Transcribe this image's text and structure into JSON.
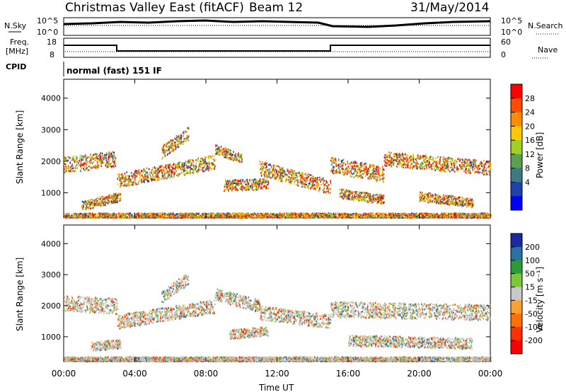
{
  "header": {
    "title": "Christmas Valley East (fitACF)",
    "beam": "Beam 12",
    "date": "31/May/2014"
  },
  "status_panels": {
    "nsky_label": "N.Sky",
    "nsearch_label": "N.Search",
    "noise_ticks_left": [
      "10^5",
      "10^0"
    ],
    "noise_ticks_right": [
      "10^5",
      "10^0"
    ],
    "freq_label_line1": "Freq.",
    "freq_label_line2": "[MHz]",
    "freq_ticks": [
      "18",
      "8"
    ],
    "nave_label": "Nave",
    "nave_ticks": [
      "60",
      "0"
    ],
    "cpid_label": "CPID",
    "cpid_value": "normal (fast) 151 IF"
  },
  "chart_data": [
    {
      "type": "heatmap",
      "title": "",
      "ylabel": "Slant Range [km]",
      "xlabel": "",
      "yticks": [
        "1000",
        "2000",
        "3000",
        "4000"
      ],
      "ylim": [
        200,
        4600
      ],
      "xlim_hours": [
        0,
        24
      ],
      "colorbar_label": "Power [dB]",
      "colorbar_ticks": [
        "28",
        "24",
        "20",
        "16",
        "12",
        "8",
        "4"
      ],
      "colorbar_colors": [
        "#ff0000",
        "#ff4a00",
        "#ff8c00",
        "#ffc800",
        "#a0d020",
        "#5aa050",
        "#3a7a80",
        "#2040b0",
        "#0000ff"
      ]
    },
    {
      "type": "heatmap",
      "title": "",
      "ylabel": "Slant Range [km]",
      "xlabel": "Time UT",
      "yticks": [
        "1000",
        "2000",
        "3000",
        "4000"
      ],
      "ylim": [
        200,
        4600
      ],
      "xlim_hours": [
        0,
        24
      ],
      "xticks": [
        "00:00",
        "04:00",
        "08:00",
        "12:00",
        "16:00",
        "20:00",
        "00:00"
      ],
      "colorbar_label": "Velocity [m s⁻¹]",
      "colorbar_ticks": [
        "200",
        "100",
        "50",
        "15",
        "-15",
        "-50",
        "-100",
        "-200"
      ],
      "colorbar_colors": [
        "#1a2aa0",
        "#2a70a0",
        "#2a9a3a",
        "#7ac83a",
        "#c8c8c8",
        "#ffa030",
        "#ff7000",
        "#ff3000",
        "#ff0000"
      ],
      "ground_scatter_color": "#c0c0c0"
    }
  ]
}
